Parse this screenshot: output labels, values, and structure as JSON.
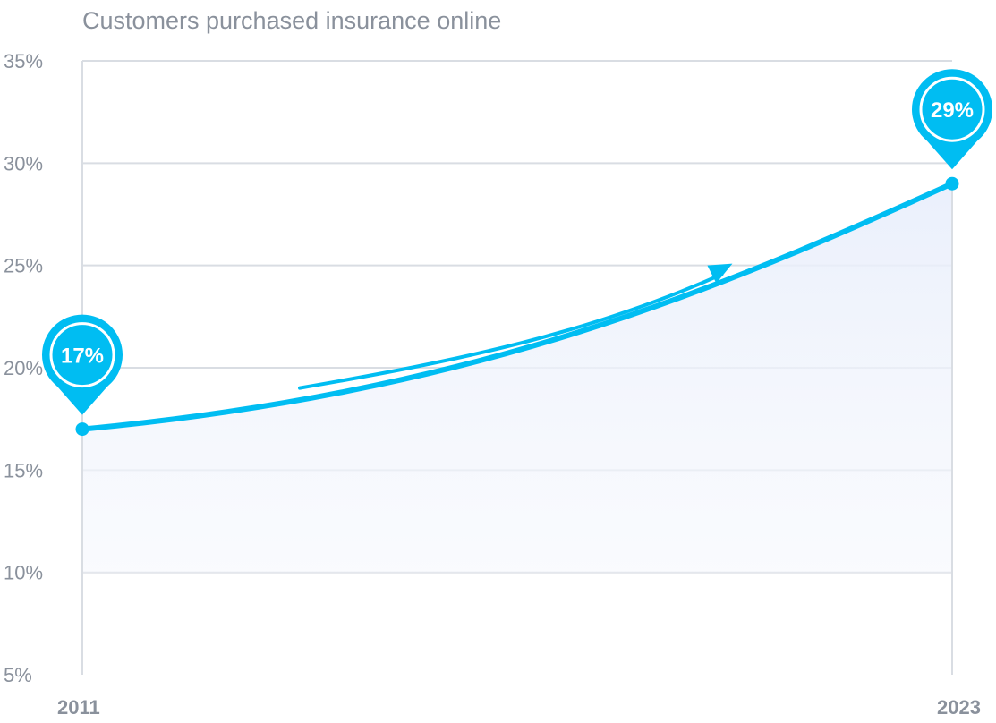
{
  "chart_data": {
    "type": "area",
    "title": "Customers purchased insurance online",
    "xlabel": "",
    "ylabel": "",
    "x": [
      "2011",
      "2023"
    ],
    "values": [
      17,
      29
    ],
    "ylim": [
      5,
      35
    ],
    "yticks": [
      "35%",
      "30%",
      "25%",
      "20%",
      "15%",
      "10%",
      "5%"
    ],
    "ytick_values": [
      35,
      30,
      25,
      20,
      15,
      10,
      5
    ],
    "annotations": [
      "17%",
      "29%"
    ],
    "grid": true,
    "line_color": "#00bdf2",
    "fill_color": "#eef2fb",
    "gridline_color": "#d9dde3",
    "text_color": "#8a919c"
  }
}
